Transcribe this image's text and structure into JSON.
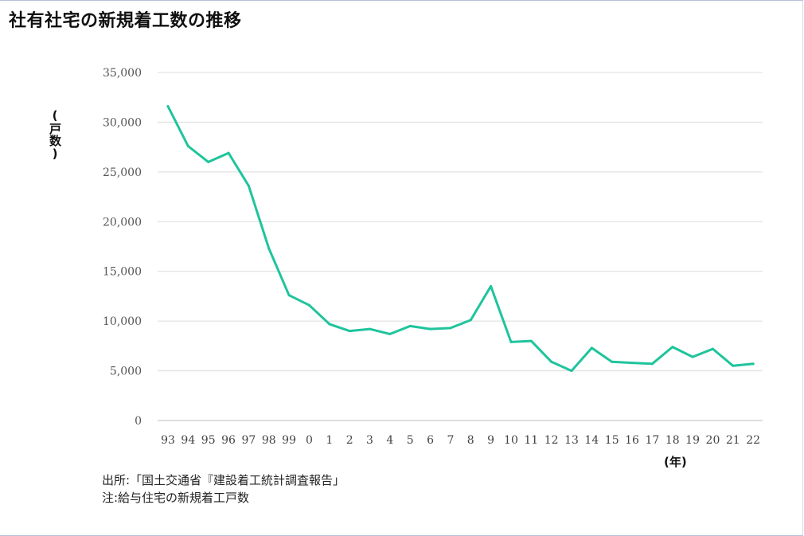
{
  "title": "社有社宅の新規着工数の推移",
  "notes": {
    "source": "出所:「国土交通省『建設着工統計調査報告」",
    "note": "注:給与住宅の新規着工戸数"
  },
  "chart_data": {
    "type": "line",
    "title": "社有社宅の新規着工数の推移",
    "xlabel": "(年)",
    "ylabel": "(戸数)",
    "ylim": [
      0,
      35000
    ],
    "y_ticks": [
      "35,000",
      "30,000",
      "25,000",
      "20,000",
      "15,000",
      "10,000",
      "5,000",
      "0"
    ],
    "y_tick_values": [
      35000,
      30000,
      25000,
      20000,
      15000,
      10000,
      5000,
      0
    ],
    "grid": true,
    "color": "#1fc49c",
    "categories": [
      "93",
      "94",
      "95",
      "96",
      "97",
      "98",
      "99",
      "0",
      "1",
      "2",
      "3",
      "4",
      "5",
      "6",
      "7",
      "8",
      "9",
      "10",
      "11",
      "12",
      "13",
      "14",
      "15",
      "16",
      "17",
      "18",
      "19",
      "20",
      "21",
      "22"
    ],
    "values": [
      31600,
      27600,
      26000,
      26900,
      23600,
      17300,
      12600,
      11600,
      9700,
      9000,
      9200,
      8700,
      9500,
      9200,
      9300,
      10100,
      13500,
      7900,
      8000,
      5900,
      5000,
      7300,
      5900,
      5800,
      5700,
      7400,
      6400,
      7200,
      5500,
      5700
    ]
  }
}
